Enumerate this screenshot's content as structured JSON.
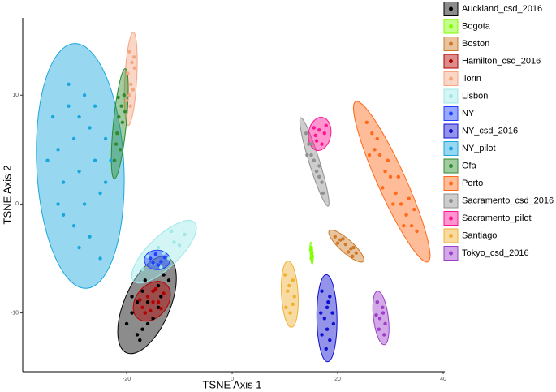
{
  "chart_data": {
    "type": "scatter",
    "x_label": "TSNE Axis 1",
    "y_label": "TSNE Axis 2",
    "xlim": [
      -39.7,
      40.3
    ],
    "ylim": [
      -15.4,
      17.1
    ],
    "xticks": [
      -20,
      0,
      20,
      40
    ],
    "yticks": [
      -10,
      0,
      10
    ],
    "ellipses": true,
    "series": [
      {
        "name": "Auckland_csd_2016",
        "color": "#000000",
        "x": [
          -18,
          -17,
          -19,
          -16,
          -15,
          -14,
          -13,
          -17,
          -18,
          -15,
          -16,
          -19,
          -14,
          -12,
          -20,
          -13.5,
          -17.5,
          -16.5
        ],
        "values": [
          -12,
          -11.5,
          -10,
          -9,
          -8,
          -7.5,
          -6.5,
          -8,
          -9,
          -10.5,
          -11,
          -8.5,
          -9.5,
          -7,
          -11,
          -8.5,
          -12.5,
          -7
        ]
      },
      {
        "name": "Bogota",
        "color": "#7fff00",
        "x": [
          15,
          15.1,
          15,
          14.9,
          15.2
        ],
        "values": [
          -4,
          -4.5,
          -5,
          -4.2,
          -4.8
        ]
      },
      {
        "name": "Boston",
        "color": "#cc7a29",
        "x": [
          19.5,
          20.5,
          21.5,
          22.5,
          23.5,
          21,
          22,
          20,
          23,
          22.8
        ],
        "values": [
          -3,
          -3.3,
          -3.7,
          -4.1,
          -4.5,
          -3.2,
          -4.4,
          -3.6,
          -4,
          -4.8
        ]
      },
      {
        "name": "Hamilton_csd_2016",
        "color": "#b30000",
        "x": [
          -17,
          -16,
          -15,
          -14,
          -13,
          -16.5,
          -15.5,
          -14.5,
          -17.5,
          -13.5,
          -15
        ],
        "values": [
          -9.5,
          -8.5,
          -8,
          -9,
          -8.2,
          -10,
          -9.8,
          -7.8,
          -8.8,
          -9.6,
          -9
        ]
      },
      {
        "name": "Ilorin",
        "color": "#f4a582",
        "x": [
          -19.5,
          -19,
          -18.5,
          -19.8,
          -19.2,
          -18.8,
          -19.5,
          -20,
          -18.6,
          -19.3
        ],
        "values": [
          14,
          13,
          12.5,
          12,
          11,
          10.5,
          10,
          9.5,
          13.5,
          9
        ]
      },
      {
        "name": "Lisbon",
        "color": "#9ee8e8",
        "x": [
          -17,
          -15,
          -13,
          -11,
          -9,
          -14,
          -12,
          -10,
          -16,
          -11.5,
          -13.5
        ],
        "values": [
          -6,
          -5.5,
          -4.5,
          -3.5,
          -2.8,
          -4,
          -5,
          -3.8,
          -4.8,
          -2.5,
          -5.8
        ]
      },
      {
        "name": "NY",
        "color": "#2040ff",
        "x": [
          -15.5,
          -14.5,
          -13.5,
          -14,
          -12.8,
          -15
        ],
        "values": [
          -5,
          -4.6,
          -5.3,
          -5.6,
          -4.9,
          -5.4
        ]
      },
      {
        "name": "NY_csd_2016",
        "color": "#1010d0",
        "x": [
          17,
          18.5,
          18,
          17.5,
          19,
          18,
          17,
          18.5,
          17.8,
          19.2,
          16.8,
          18.2
        ],
        "values": [
          -8,
          -8.5,
          -9.5,
          -10.5,
          -10,
          -11.5,
          -12,
          -12.5,
          -13.3,
          -11,
          -10,
          -9
        ]
      },
      {
        "name": "NY_pilot",
        "color": "#1aa7dd",
        "x": [
          -34,
          -33,
          -32,
          -31,
          -30,
          -29,
          -28,
          -27,
          -26,
          -25,
          -24,
          -30,
          -28,
          -32,
          -26,
          -35,
          -29,
          -24,
          -31,
          -27,
          -33,
          -25,
          -23,
          -29
        ],
        "values": [
          8,
          5,
          2,
          9,
          6,
          3,
          0,
          7,
          4,
          1,
          6,
          -2,
          10,
          -1,
          9,
          4,
          -4,
          2,
          11,
          -3,
          0,
          -5,
          4,
          8
        ]
      },
      {
        "name": "Ofa",
        "color": "#2e8b2e",
        "x": [
          -20.5,
          -21,
          -21.5,
          -20.8,
          -21.8,
          -22,
          -21.2,
          -22.3,
          -20.3,
          -21.6
        ],
        "values": [
          10,
          9,
          8,
          7.5,
          6.5,
          5.5,
          5,
          4,
          8.5,
          9.8
        ]
      },
      {
        "name": "Porto",
        "color": "#ff6a1a",
        "x": [
          25.5,
          26.5,
          27,
          28,
          29,
          30,
          31,
          32,
          33,
          34,
          27.5,
          29.5,
          31.5,
          33.5,
          28.5,
          30.5,
          32.5,
          26,
          34.5,
          35
        ],
        "values": [
          7.5,
          6.5,
          5,
          4.5,
          3,
          2.5,
          1,
          0,
          -1,
          -2,
          6,
          4,
          2.5,
          0.5,
          1.5,
          0,
          -2,
          4.5,
          -0.5,
          -2.5
        ]
      },
      {
        "name": "Sacramento_csd_2016",
        "color": "#909090",
        "x": [
          14,
          14.5,
          15,
          15.5,
          16,
          16.5,
          17,
          15,
          16.5,
          14.2,
          17.2
        ],
        "values": [
          6.5,
          5.5,
          4.5,
          4,
          3,
          2.5,
          2,
          5.5,
          3.5,
          4.5,
          1
        ]
      },
      {
        "name": "Sacramento_pilot",
        "color": "#ff1493",
        "x": [
          15.5,
          16.5,
          17.5,
          16,
          17,
          15.8,
          17.8
        ],
        "values": [
          7,
          6.8,
          6.5,
          5.8,
          5.5,
          6.3,
          7.2
        ]
      },
      {
        "name": "Santiago",
        "color": "#f0b030",
        "x": [
          10,
          11.5,
          10.5,
          11.8,
          10.2,
          11,
          11.5,
          10.8
        ],
        "values": [
          -6.5,
          -7,
          -8,
          -8.5,
          -9.5,
          -10,
          -9.2,
          -7.5
        ]
      },
      {
        "name": "Tokyo_csd_2016",
        "color": "#9b3fc9",
        "x": [
          27.5,
          28.5,
          28,
          29,
          27.8,
          28.6,
          27.3,
          28.8
        ],
        "values": [
          -9,
          -9.5,
          -10.5,
          -11,
          -11.5,
          -10,
          -10.2,
          -12
        ]
      }
    ]
  }
}
